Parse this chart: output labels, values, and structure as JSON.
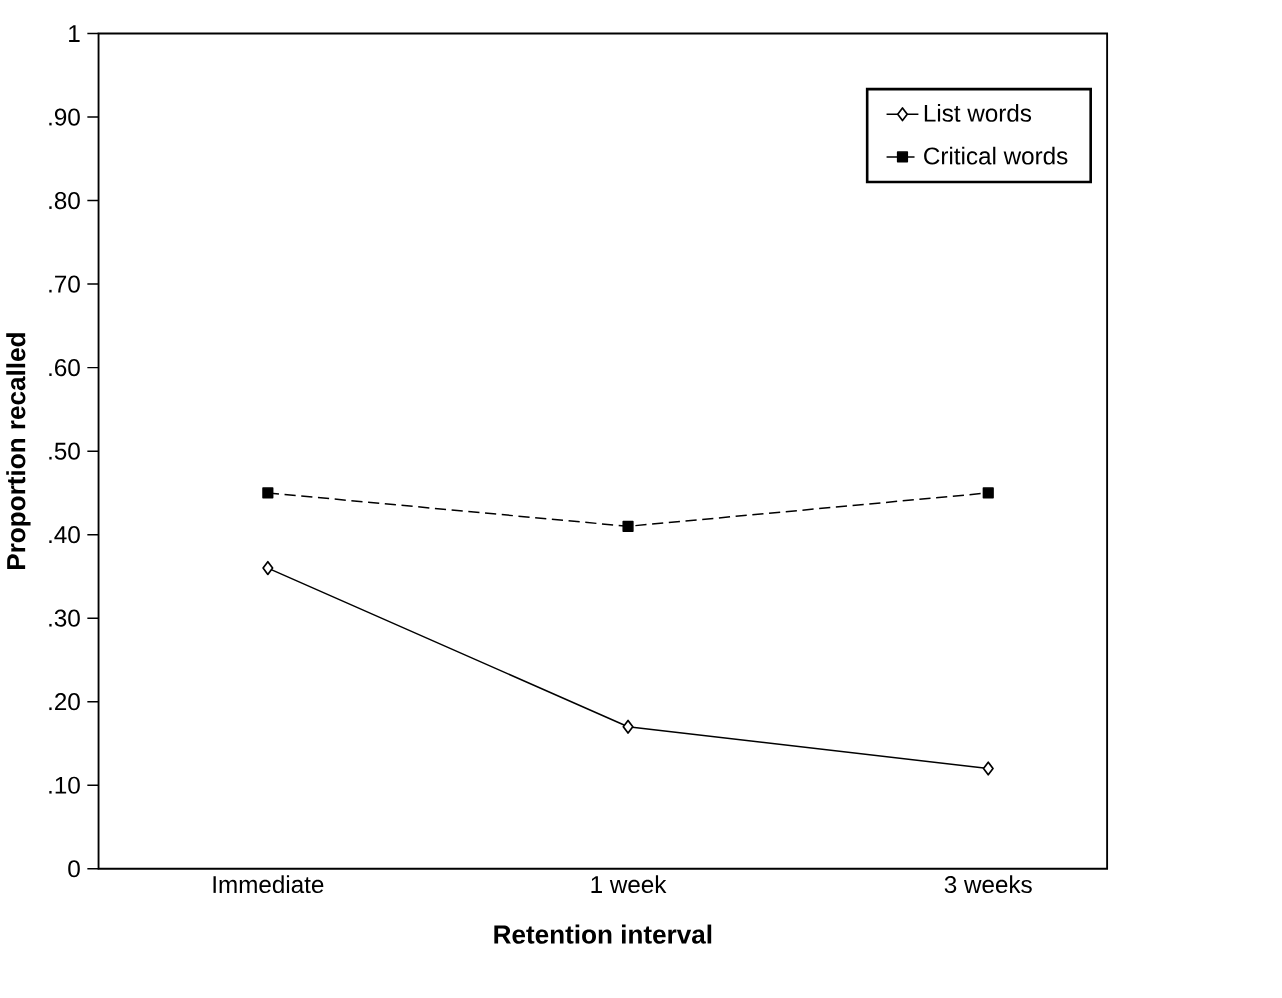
{
  "chart_data": {
    "type": "line",
    "xlabel": "Retention interval",
    "ylabel": "Proportion recalled",
    "categories": [
      "Immediate",
      "1 week",
      "3 weeks"
    ],
    "series": [
      {
        "name": "List words",
        "color": "#000000",
        "values": [
          0.36,
          0.17,
          0.12
        ],
        "marker": "diamond",
        "line_style": "solid"
      },
      {
        "name": "Critical words",
        "color": "#000000",
        "values": [
          0.45,
          0.41,
          0.45
        ],
        "marker": "square",
        "line_style": "dashed"
      }
    ],
    "ylim": [
      0,
      1
    ],
    "yticks": [
      0,
      {
        "value": 0.1,
        "label": ".10"
      },
      {
        "value": 0.2,
        "label": ".20"
      },
      {
        "value": 0.3,
        "label": ".30"
      },
      {
        "value": 0.4,
        "label": ".40"
      },
      {
        "value": 0.5,
        "label": ".50"
      },
      {
        "value": 0.6,
        "label": ".60"
      },
      {
        "value": 0.7,
        "label": ".70"
      },
      {
        "value": 0.8,
        "label": ".80"
      },
      {
        "value": 0.9,
        "label": ".90"
      },
      1
    ],
    "grid": false,
    "legend": "top right"
  }
}
